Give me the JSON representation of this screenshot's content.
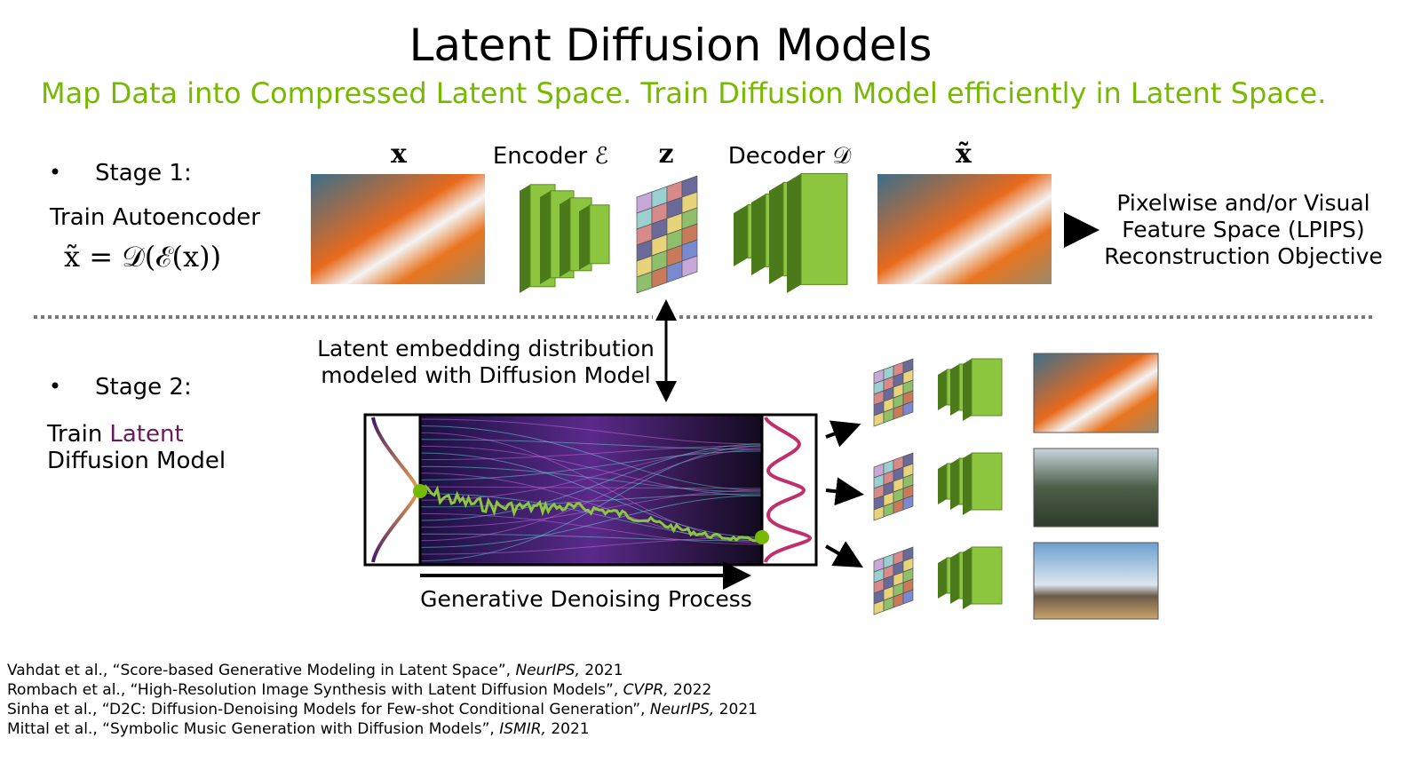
{
  "title": "Latent Diffusion Models",
  "subtitle": "Map Data into Compressed Latent Space. Train Diffusion Model efficiently in Latent Space.",
  "stage1": {
    "bullet_label": "Stage 1:",
    "label": "Train Autoencoder",
    "formula": "x̃ = 𝒟(ℰ(x))"
  },
  "autoencoder": {
    "input": "x",
    "encoder": "Encoder ℰ",
    "latent": "z",
    "decoder": "Decoder 𝒟",
    "output": "x̃",
    "objective": [
      "Pixelwise and/or Visual",
      "Feature Space (LPIPS)",
      "Reconstruction Objective"
    ]
  },
  "stage2": {
    "bullet_label": "Stage 2:",
    "label_prefix": "Train",
    "label_highlight": "Latent",
    "label_line2": "Diffusion Model"
  },
  "latent_note": [
    "Latent embedding distribution",
    "modeled with Diffusion Model"
  ],
  "process_label": "Generative Denoising Process",
  "references": [
    {
      "authors": "Vahdat et al., ",
      "title": "“Score-based Generative Modeling in Latent Space”, ",
      "venue": "NeurIPS,",
      "year": " 2021"
    },
    {
      "authors": "Rombach et al., ",
      "title": "“High-Resolution Image Synthesis with Latent Diffusion Models”, ",
      "venue": "CVPR,",
      "year": " 2022"
    },
    {
      "authors": "Sinha et al., ",
      "title": "“D2C: Diffusion-Denoising Models for Few-shot Conditional Generation”, ",
      "venue": "NeurIPS,",
      "year": " 2021"
    },
    {
      "authors": "Mittal et al., ",
      "title": "“Symbolic Music Generation with Diffusion Models”, ",
      "venue": "ISMIR,",
      "year": " 2021"
    }
  ]
}
